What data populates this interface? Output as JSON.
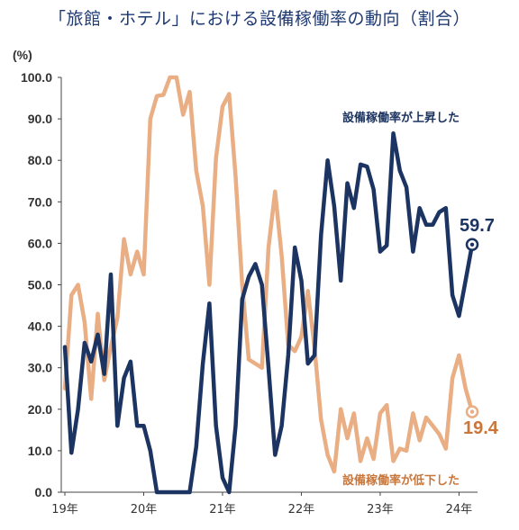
{
  "chart_data": {
    "type": "line",
    "title": "「旅館・ホテル」における設備稼働率の動向（割合）",
    "ylabel": "(%)",
    "ylim": [
      0,
      100
    ],
    "yticks": [
      "0.0",
      "10.0",
      "20.0",
      "30.0",
      "40.0",
      "50.0",
      "60.0",
      "70.0",
      "80.0",
      "90.0",
      "100.0"
    ],
    "xlim": [
      0,
      62
    ],
    "xticks": [
      {
        "label": "19年",
        "x": 0
      },
      {
        "label": "20年",
        "x": 12
      },
      {
        "label": "21年",
        "x": 24
      },
      {
        "label": "22年",
        "x": 36
      },
      {
        "label": "23年",
        "x": 48
      },
      {
        "label": "24年",
        "x": 60
      }
    ],
    "grid": false,
    "series": [
      {
        "name": "設備稼働率が低下した",
        "color": "#e9ae84",
        "values": [
          25,
          47.5,
          50,
          41,
          22.5,
          43,
          27,
          35,
          42,
          61,
          52.5,
          58,
          52.5,
          90,
          95.5,
          95.8,
          100,
          100,
          91,
          96.5,
          77.5,
          69,
          50,
          80.5,
          93,
          96,
          76,
          50,
          32,
          31,
          30,
          59,
          72.5,
          57,
          35.5,
          34,
          37.5,
          48.5,
          35,
          17.5,
          9,
          5,
          20,
          13,
          19,
          7.5,
          13,
          8,
          19,
          21,
          7.5,
          10.5,
          10,
          19,
          12.5,
          18,
          16,
          14,
          10.5,
          27.5,
          33,
          25,
          19.4
        ]
      },
      {
        "name": "設備稼働率が上昇した",
        "color": "#1c3461",
        "values": [
          35,
          9.5,
          20,
          36,
          31.5,
          38,
          28.5,
          52.5,
          16,
          27.5,
          31.5,
          16,
          16,
          10,
          0,
          0,
          0,
          0,
          0,
          0,
          11,
          31,
          45.5,
          16,
          3.5,
          0,
          16,
          46.5,
          52,
          55,
          50,
          30,
          9,
          16,
          33,
          59,
          51,
          31,
          33,
          62,
          80,
          69,
          51,
          74.5,
          68.5,
          79,
          78.5,
          73,
          58,
          59.5,
          86.5,
          77.5,
          73.5,
          58,
          68.5,
          64.5,
          64.5,
          67.5,
          68.5,
          47.5,
          42.5,
          51,
          59.7
        ]
      }
    ],
    "annotations": {
      "rise_label": "設備稼働率が上昇した",
      "fall_label": "設備稼働率が低下した",
      "rise_end_value": "59.7",
      "fall_end_value": "19.4"
    }
  }
}
